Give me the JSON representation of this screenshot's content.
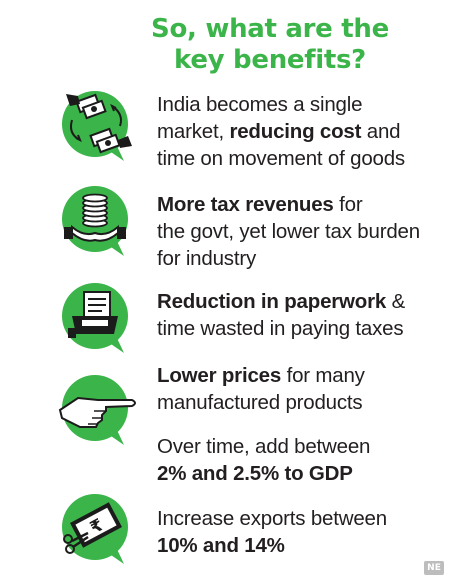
{
  "title": {
    "line1": "So, what are the",
    "line2": "key benefits?"
  },
  "colors": {
    "accent_green": "#3bb44a",
    "text": "#231f20"
  },
  "benefits": [
    {
      "icon": "money-exchange-icon",
      "line1": "India becomes a single",
      "line2_pre": "market, ",
      "line2_bold": "reducing cost",
      "line2_post": " and",
      "line3": "time on movement of goods"
    },
    {
      "icon": "coins-hand-icon",
      "line1_bold": "More tax revenues",
      "line1_post": " for",
      "line2": "the govt, yet lower tax burden",
      "line3": "for industry"
    },
    {
      "icon": "paperwork-tray-icon",
      "line1_bold": "Reduction in paperwork",
      "line1_post": " &",
      "line2": "time wasted in paying taxes"
    },
    {
      "icon": "pointing-hand-icon",
      "line1_bold": "Lower prices",
      "line1_post": " for many",
      "line2": "manufactured products"
    },
    {
      "line1": "Over time, add between",
      "line2_bold": "2% and 2.5% to GDP"
    },
    {
      "icon": "rupee-cut-icon",
      "line1": "Increase exports between",
      "line2_bold": "10% and 14%"
    }
  ],
  "logo_text": "NE"
}
